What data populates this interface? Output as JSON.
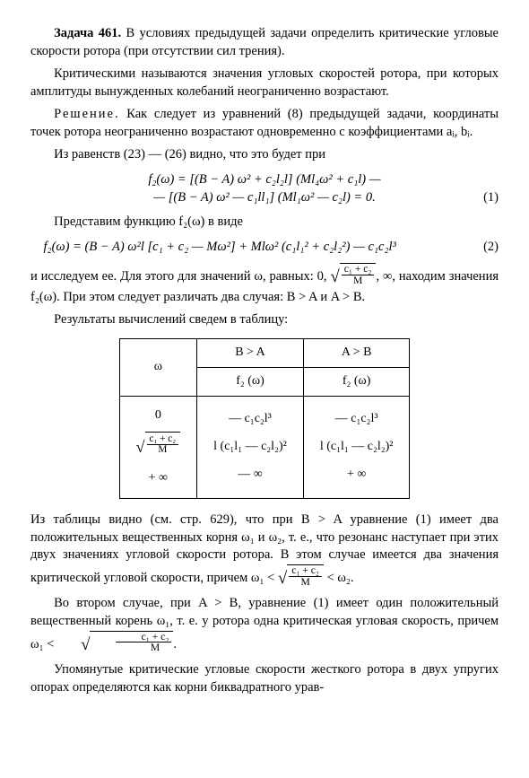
{
  "task": {
    "label": "Задача 461.",
    "intro": "В условиях предыдущей задачи определить критические угловые скорости ротора (при отсутствии сил трения)."
  },
  "p1": "Критическими называются значения угловых скоростей ротора, при которых амплитуды вынужденных колебаний неограниченно возрастают.",
  "p2a": "Решение.",
  "p2b": "Как следует из уравнений (8) предыдущей задачи, координаты точек ротора неограниченно возрастают одновременно с коэффициентами aᵢ, bᵢ.",
  "p3": "Из равенств (23) — (26) видно, что это будет при",
  "eq1a": "f₂(ω) = [(B − A) ω² + c₂l₂l] (Ml₄ω² + c₁l) —",
  "eq1b": "— [(B − A) ω² — c₁ll₁] (Ml₁ω² — c₂l) = 0.",
  "eq1num": "(1)",
  "p4": "Представим функцию f₂(ω) в виде",
  "eq2": "f₂(ω) = (B − A) ω²l [c₁ + c₂ — Mω²] + Mlω² (c₁l₁² + c₂l₂²) — c₁c₂l³",
  "eq2num": "(2)",
  "p5a": "и исследуем ее. Для этого для значений ω, равных: 0, ",
  "p5b": ", ∞, находим значения f₂(ω). При этом следует различать два случая: B > A и A > B.",
  "p6": "Результаты вычислений сведем в таблицу:",
  "table": {
    "col0_head": "ω",
    "col1_head": "B > A",
    "col2_head": "A > B",
    "col1_sub": "f₂ (ω)",
    "col2_sub": "f₂ (ω)",
    "r1c0": "0",
    "r1c1": "— c₁c₂l³",
    "r1c2": "— c₁c₂l³",
    "r2c1": "l (c₁l₁ — c₂l₂)²",
    "r2c2": "l (c₁l₁ — c₂l₂)²",
    "r3c0": "+ ∞",
    "r3c1": "— ∞",
    "r3c2": "+ ∞"
  },
  "p7a": "Из таблицы видно (см. стр. 629), что при B > A уравнение (1) имеет два положительных вещественных корня ω₁ и ω₂, т. е., что резонанс наступает при этих двух значениях угловой скорости ротора. В этом случае имеется два значения критической угловой скорости, причем",
  "p7b": "ω₁ < ",
  "p7c": " < ω₂.",
  "p8a": "Во втором случае, при A > B, уравнение (1) имеет один положительный вещественный корень ω₁, т. е. у ротора одна критическая угловая скорость, причем ω₁ < ",
  "p8b": ".",
  "p9": "Упомянутые критические угловые скорости жесткого ротора в двух упругих опорах определяются как корни биквадратного урав-",
  "frac": {
    "num": "c₁ + c₂",
    "den": "M"
  }
}
